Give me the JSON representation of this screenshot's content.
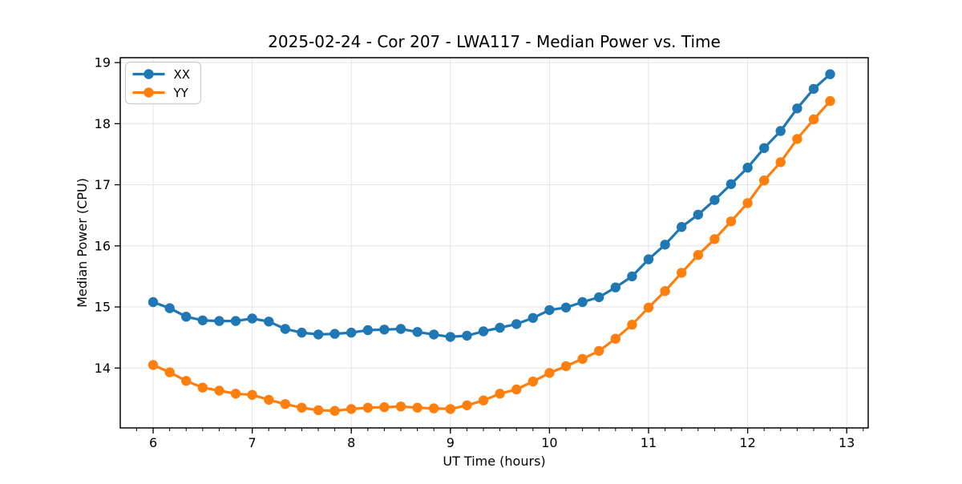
{
  "chart_data": {
    "type": "line",
    "title": "2025-02-24 - Cor 207 - LWA117 - Median Power vs. Time",
    "xlabel": "UT Time (hours)",
    "ylabel": "Median Power (CPU)",
    "xlim": [
      5.668,
      13.217
    ],
    "ylim": [
      13.02,
      19.08
    ],
    "xticks": [
      6,
      7,
      8,
      9,
      10,
      11,
      12,
      13
    ],
    "yticks": [
      14,
      15,
      16,
      17,
      18,
      19
    ],
    "x_minor_step": 0.166667,
    "grid": true,
    "legend_position": "upper left",
    "x": [
      6.0,
      6.167,
      6.333,
      6.5,
      6.667,
      6.833,
      7.0,
      7.167,
      7.333,
      7.5,
      7.667,
      7.833,
      8.0,
      8.167,
      8.333,
      8.5,
      8.667,
      8.833,
      9.0,
      9.167,
      9.333,
      9.5,
      9.667,
      9.833,
      10.0,
      10.167,
      10.333,
      10.5,
      10.667,
      10.833,
      11.0,
      11.167,
      11.333,
      11.5,
      11.667,
      11.833,
      12.0,
      12.167,
      12.333,
      12.5,
      12.667,
      12.833
    ],
    "series": [
      {
        "name": "XX",
        "color": "#1f77b4",
        "values": [
          15.08,
          14.98,
          14.84,
          14.78,
          14.77,
          14.77,
          14.81,
          14.76,
          14.64,
          14.58,
          14.55,
          14.56,
          14.58,
          14.62,
          14.63,
          14.64,
          14.59,
          14.55,
          14.51,
          14.53,
          14.6,
          14.66,
          14.72,
          14.82,
          14.95,
          14.99,
          15.08,
          15.16,
          15.32,
          15.5,
          15.78,
          16.02,
          16.31,
          16.51,
          16.75,
          17.01,
          17.28,
          17.6,
          17.88,
          18.25,
          18.57,
          18.81
        ]
      },
      {
        "name": "YY",
        "color": "#ff7f0e",
        "values": [
          14.05,
          13.93,
          13.79,
          13.68,
          13.63,
          13.58,
          13.56,
          13.48,
          13.41,
          13.35,
          13.31,
          13.3,
          13.33,
          13.35,
          13.36,
          13.37,
          13.35,
          13.34,
          13.33,
          13.39,
          13.47,
          13.58,
          13.65,
          13.78,
          13.92,
          14.03,
          14.15,
          14.28,
          14.48,
          14.71,
          14.99,
          15.26,
          15.56,
          15.85,
          16.11,
          16.4,
          16.7,
          17.07,
          17.37,
          17.75,
          18.07,
          18.37
        ]
      }
    ],
    "style": {
      "grid_color": "#e6e6e6",
      "spine_color": "#000000",
      "background": "#ffffff"
    }
  }
}
